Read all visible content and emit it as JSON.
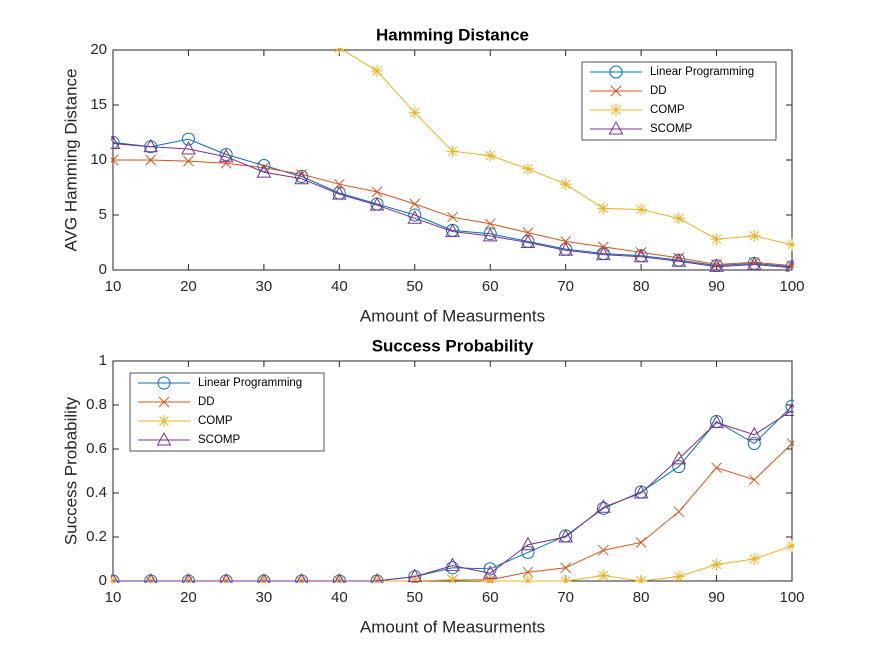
{
  "chart_data": [
    {
      "type": "line",
      "title": "Hamming Distance",
      "x_label": "Amount of Measurments",
      "y_label": "AVG Hamming Distance",
      "x": [
        10,
        15,
        20,
        25,
        30,
        35,
        40,
        45,
        50,
        55,
        60,
        65,
        70,
        75,
        80,
        85,
        90,
        95,
        100
      ],
      "xlim": [
        10,
        100
      ],
      "xticks": [
        10,
        20,
        30,
        40,
        50,
        60,
        70,
        80,
        90,
        100
      ],
      "ylim": [
        0,
        20
      ],
      "yticks": [
        0,
        5,
        10,
        15,
        20
      ],
      "legend": "northeast",
      "series": [
        {
          "name": "Linear Programming",
          "color": "#0072BD",
          "marker": "circle",
          "values": [
            11.6,
            11.2,
            11.9,
            10.5,
            9.5,
            8.5,
            7.0,
            6.0,
            5.0,
            3.6,
            3.3,
            2.6,
            1.9,
            1.5,
            1.3,
            0.9,
            0.4,
            0.6,
            0.3
          ]
        },
        {
          "name": "DD",
          "color": "#D95319",
          "marker": "x",
          "values": [
            10.0,
            10.0,
            9.9,
            9.7,
            9.3,
            8.7,
            7.8,
            7.1,
            6.0,
            4.8,
            4.2,
            3.4,
            2.6,
            2.1,
            1.6,
            1.1,
            0.5,
            0.7,
            0.4
          ]
        },
        {
          "name": "COMP",
          "color": "#EDB120",
          "marker": "star",
          "values": [
            null,
            null,
            null,
            null,
            null,
            null,
            20.2,
            18.1,
            14.3,
            10.8,
            10.4,
            9.2,
            7.8,
            5.6,
            5.5,
            4.7,
            2.8,
            3.1,
            2.3
          ]
        },
        {
          "name": "SCOMP",
          "color": "#7E2F8E",
          "marker": "triangle",
          "values": [
            11.5,
            11.2,
            11.0,
            10.3,
            8.9,
            8.3,
            6.9,
            5.9,
            4.7,
            3.5,
            3.1,
            2.5,
            1.8,
            1.4,
            1.2,
            0.8,
            0.3,
            0.5,
            0.2
          ]
        }
      ]
    },
    {
      "type": "line",
      "title": "Success Probability",
      "x_label": "Amount of Measurments",
      "y_label": "Success Probability",
      "x": [
        10,
        15,
        20,
        25,
        30,
        35,
        40,
        45,
        50,
        55,
        60,
        65,
        70,
        75,
        80,
        85,
        90,
        95,
        100
      ],
      "xlim": [
        10,
        100
      ],
      "xticks": [
        10,
        20,
        30,
        40,
        50,
        60,
        70,
        80,
        90,
        100
      ],
      "ylim": [
        0,
        1
      ],
      "yticks": [
        0,
        0.2,
        0.4,
        0.6,
        0.8,
        1
      ],
      "legend": "northwest",
      "series": [
        {
          "name": "Linear Programming",
          "color": "#0072BD",
          "marker": "circle",
          "values": [
            0,
            0,
            0,
            0,
            0,
            0,
            0,
            0,
            0.02,
            0.06,
            0.055,
            0.13,
            0.205,
            0.33,
            0.405,
            0.52,
            0.725,
            0.625,
            0.795
          ]
        },
        {
          "name": "DD",
          "color": "#D95319",
          "marker": "x",
          "values": [
            0,
            0,
            0,
            0,
            0,
            0,
            0,
            0,
            0,
            0.005,
            0.005,
            0.04,
            0.06,
            0.14,
            0.175,
            0.315,
            0.515,
            0.46,
            0.625
          ]
        },
        {
          "name": "COMP",
          "color": "#EDB120",
          "marker": "star",
          "values": [
            0,
            0,
            0,
            0,
            0,
            0,
            0,
            0,
            0,
            0.005,
            0,
            0,
            0,
            0.025,
            0,
            0.02,
            0.075,
            0.1,
            0.16
          ]
        },
        {
          "name": "SCOMP",
          "color": "#7E2F8E",
          "marker": "triangle",
          "values": [
            0,
            0,
            0,
            0,
            0,
            0,
            0,
            0,
            0.02,
            0.07,
            0.035,
            0.165,
            0.2,
            0.335,
            0.4,
            0.555,
            0.72,
            0.665,
            0.775
          ]
        }
      ]
    }
  ]
}
